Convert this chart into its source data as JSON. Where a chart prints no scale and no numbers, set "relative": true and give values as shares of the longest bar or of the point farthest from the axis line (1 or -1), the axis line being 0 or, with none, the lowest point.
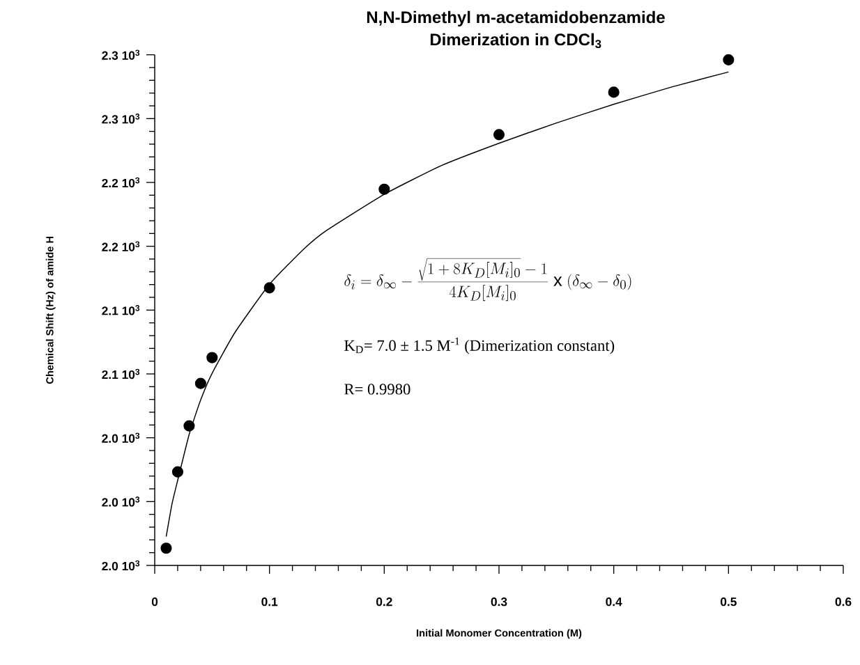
{
  "chart_data": {
    "type": "scatter",
    "title": "N,N-Dimethyl   m-acetamidobenzamide",
    "subtitle": "Dimerization  in  CDCl$_{3}$",
    "xlabel": "Initial Monomer Concentration (M)",
    "relative": true,
    "xlim": [
      0,
      0.6
    ],
    "xticks": [
      0,
      0.1,
      0.2,
      0.3,
      0.4,
      0.5,
      0.6
    ],
    "annotations": [
      "\\delta_{i}=\\delta_{\\infty}-\\frac{\\sqrt{1+8K_{D}[M_{i}]_{0}}-1}{4K_{D}[M_{i}]_{0}}\\;\\mathrm{x}\\;(\\delta_{\\infty}-\\delta_{0})",
      "K$_{D}$= 7.0 ± 1.5 M$^{-1}$ (Dimerization constant)",
      "R= 0.9980",
      "2.0 10$^{3}$",
      "2.0 10$^{3}$",
      "2.0 10$^{3}$",
      "2.1 10$^{3}$",
      "2.1 10$^{3}$",
      "2.2 10$^{3}$",
      "2.2 10$^{3}$",
      "2.3 10$^{3}$",
      "2.3 10$^{3}$",
      "Chemical Shift (Hz) of amide H"
    ],
    "series": [
      {
        "marker": "circle",
        "color": "#000000",
        "x": [
          0.01,
          0.02,
          0.03,
          0.04,
          0.05,
          0.1,
          0.2,
          0.3,
          0.4,
          0.5
        ],
        "values": [
          0.034,
          0.185,
          0.276,
          0.36,
          0.411,
          0.549,
          0.744,
          0.852,
          0.936,
          1
        ]
      },
      {
        "type": "line",
        "marker": "none",
        "color": "#000000",
        "x": [
          0.01,
          0.015,
          0.02,
          0.03,
          0.04,
          0.05,
          0.07,
          0.1,
          0.13,
          0.15,
          0.2,
          0.25,
          0.3,
          0.35,
          0.4,
          0.45,
          0.5
        ],
        "values": [
          0.057,
          0.121,
          0.168,
          0.259,
          0.327,
          0.38,
          0.461,
          0.556,
          0.626,
          0.663,
          0.734,
          0.791,
          0.835,
          0.875,
          0.912,
          0.946,
          0.976
        ]
      }
    ]
  }
}
